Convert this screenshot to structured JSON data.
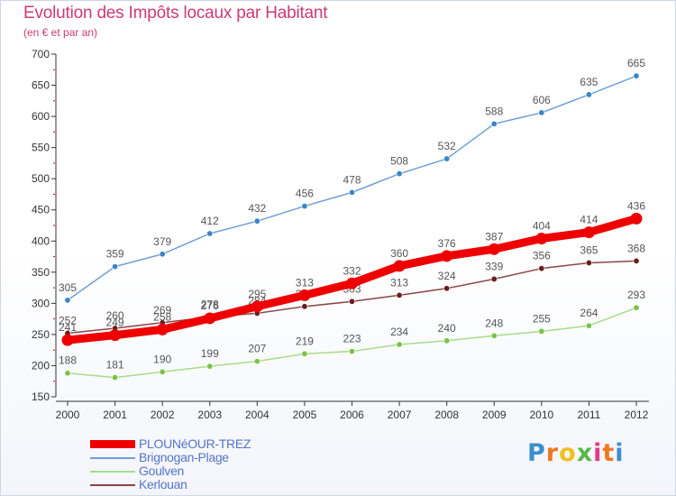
{
  "header": {
    "title": "Evolution des Impôts locaux par Habitant",
    "subtitle": "(en € et par an)"
  },
  "logo": {
    "letters": [
      "P",
      "r",
      "o",
      "x",
      "i",
      "t",
      "i"
    ],
    "colors": [
      "#3a8fd0",
      "#f07820",
      "#f0c020",
      "#58b848",
      "#e23a8a",
      "#f07820",
      "#3a8fd0"
    ]
  },
  "chart_data": {
    "type": "line",
    "title": "Evolution des Impôts locaux par Habitant",
    "subtitle": "(en € et par an)",
    "xlabel": "",
    "ylabel": "",
    "x": [
      "2000",
      "2001",
      "2002",
      "2003",
      "2004",
      "2005",
      "2006",
      "2007",
      "2008",
      "2009",
      "2010",
      "2011",
      "2012"
    ],
    "ylim": [
      150,
      700
    ],
    "yticks": [
      150,
      200,
      250,
      300,
      350,
      400,
      450,
      500,
      550,
      600,
      650,
      700
    ],
    "grid": false,
    "legend_position": "bottom-left",
    "series": [
      {
        "name": "Brignogan-Plage",
        "color": "#6f9fd8",
        "marker": "#3a86c6",
        "weight": "thin",
        "values": [
          305,
          359,
          379,
          412,
          432,
          456,
          478,
          508,
          532,
          588,
          606,
          635,
          665
        ]
      },
      {
        "name": "Goulven",
        "color": "#a6dc88",
        "marker": "#7cc24a",
        "weight": "thin",
        "values": [
          188,
          181,
          190,
          199,
          207,
          219,
          223,
          234,
          240,
          248,
          255,
          264,
          293
        ]
      },
      {
        "name": "Kerlouan",
        "color": "#8c4545",
        "marker": "#6a1e1e",
        "weight": "thin",
        "values": [
          252,
          260,
          269,
          278,
          284,
          295,
          303,
          313,
          324,
          339,
          356,
          365,
          368
        ]
      },
      {
        "name": "PLOUNéOUR-TREZ",
        "color": "#ee0000",
        "marker": "#ee0000",
        "weight": "thick",
        "values": [
          241,
          249,
          258,
          276,
          295,
          313,
          332,
          360,
          376,
          387,
          404,
          414,
          436
        ]
      }
    ],
    "legend_order": [
      "PLOUNéOUR-TREZ",
      "Brignogan-Plage",
      "Goulven",
      "Kerlouan"
    ]
  }
}
